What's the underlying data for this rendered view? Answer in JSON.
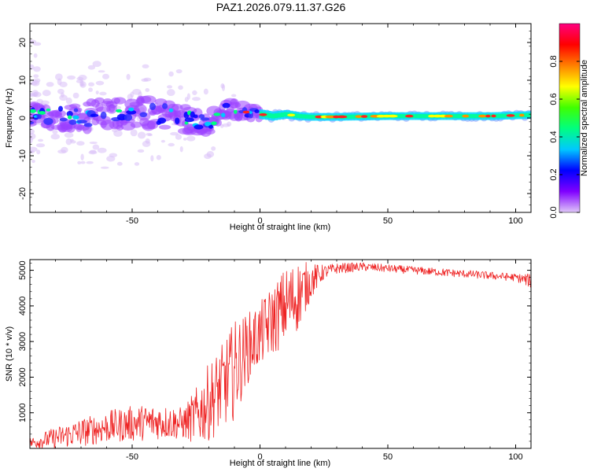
{
  "title": "PAZ1.2026.079.11.37.G26",
  "chart_data": [
    {
      "type": "heatmap",
      "name": "spectrogram",
      "xlabel": "Height of straight line (km)",
      "ylabel": "Frequency (Hz)",
      "xlim": [
        -90,
        106
      ],
      "ylim": [
        -25,
        25
      ],
      "xticks": [
        -50,
        0,
        50,
        100
      ],
      "yticks": [
        -20,
        -10,
        0,
        10,
        20
      ],
      "xtick_labels": [
        "-50",
        "0",
        "50",
        "100"
      ],
      "ytick_labels": [
        "-20",
        "-10",
        "0",
        "10",
        "20"
      ],
      "colorbar": {
        "label": "Normalized spectral amplitude",
        "range": [
          0,
          1
        ],
        "ticks": [
          0.0,
          0.2,
          0.4,
          0.6,
          0.8
        ],
        "tick_labels": [
          "0.0",
          "0.2",
          "0.4",
          "0.6",
          "0.8"
        ],
        "colormap": [
          "#e0c8f8",
          "#8000ff",
          "#0000ff",
          "#00c8ff",
          "#00ff80",
          "#40ff00",
          "#ffff00",
          "#ff8000",
          "#ff0000",
          "#ff0080"
        ]
      },
      "centerline": {
        "x": [
          -90,
          -70,
          -50,
          -35,
          -20,
          -12,
          -5,
          0,
          5,
          10,
          15,
          20,
          30,
          50,
          70,
          90,
          106
        ],
        "y": [
          0.5,
          0.5,
          1.5,
          1.0,
          -1.5,
          2.5,
          1.5,
          1.0,
          0.5,
          1.0,
          0.5,
          0.3,
          0.3,
          0.5,
          0.5,
          0.5,
          0.8
        ]
      },
      "band_halfwidth": {
        "x": [
          -90,
          -60,
          -30,
          -15,
          0,
          20,
          106
        ],
        "y": [
          3.0,
          4.5,
          4.0,
          2.5,
          1.5,
          1.2,
          1.2
        ]
      }
    },
    {
      "type": "line",
      "name": "snr",
      "xlabel": "Height of straight line (km)",
      "ylabel": "SNR (10 * v/v)",
      "xlim": [
        -90,
        106
      ],
      "ylim": [
        0,
        5300
      ],
      "xticks": [
        -50,
        0,
        50,
        100
      ],
      "yticks": [
        1000,
        2000,
        3000,
        4000,
        5000
      ],
      "xtick_labels": [
        "-50",
        "0",
        "50",
        "100"
      ],
      "ytick_labels": [
        "1000",
        "2000",
        "3000",
        "4000",
        "5000"
      ],
      "color": "#ee2222",
      "envelope": {
        "x": [
          -90,
          -80,
          -70,
          -60,
          -50,
          -40,
          -30,
          -25,
          -20,
          -15,
          -10,
          -5,
          0,
          5,
          10,
          15,
          20,
          25,
          30,
          40,
          50,
          60,
          70,
          80,
          90,
          100,
          106
        ],
        "mean": [
          150,
          300,
          450,
          600,
          700,
          750,
          700,
          900,
          1300,
          1700,
          2200,
          2800,
          3200,
          3600,
          4000,
          4300,
          4700,
          4950,
          5050,
          5100,
          5050,
          5000,
          4950,
          4900,
          4850,
          4800,
          4700
        ],
        "amp": [
          150,
          300,
          400,
          450,
          500,
          500,
          450,
          800,
          1100,
          1200,
          1400,
          1000,
          900,
          1000,
          1100,
          1000,
          500,
          200,
          150,
          120,
          110,
          110,
          110,
          110,
          110,
          110,
          200
        ]
      }
    }
  ]
}
